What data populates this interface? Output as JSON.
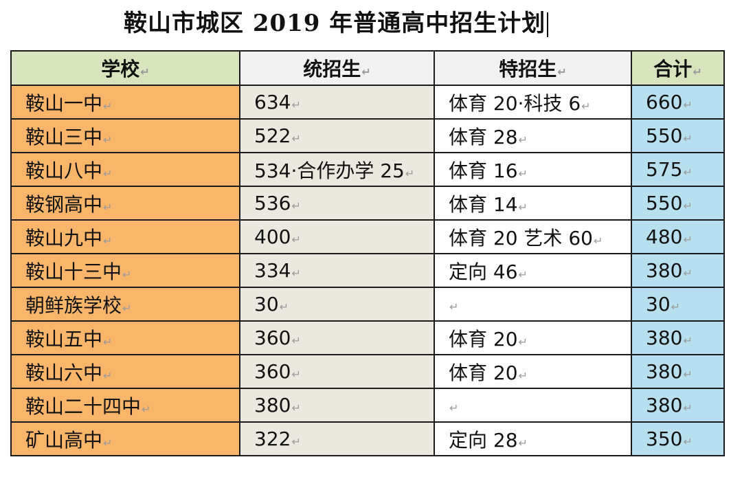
{
  "title": "鞍山市城区 2019 年普通高中招生计划",
  "return_mark": "↵",
  "table": {
    "headers": {
      "school": "学校",
      "general": "统招生",
      "special": "特招生",
      "total": "合计"
    },
    "rows": [
      {
        "school": "鞍山一中",
        "general": "634",
        "special": "体育 20·科技 6",
        "total": "660"
      },
      {
        "school": "鞍山三中",
        "general": "522",
        "special": "体育 28",
        "total": "550"
      },
      {
        "school": "鞍山八中",
        "general": "534·合作办学 25",
        "special": "体育 16",
        "total": "575"
      },
      {
        "school": "鞍钢高中",
        "general": "536",
        "special": "体育 14",
        "total": "550"
      },
      {
        "school": "鞍山九中",
        "general": "400",
        "special": "体育 20 艺术 60",
        "total": "480"
      },
      {
        "school": "鞍山十三中",
        "general": "334",
        "special": "定向 46",
        "total": "380"
      },
      {
        "school": "朝鲜族学校",
        "general": "30",
        "special": "",
        "total": "30"
      },
      {
        "school": "鞍山五中",
        "general": "360",
        "special": "体育 20",
        "total": "380"
      },
      {
        "school": "鞍山六中",
        "general": "360",
        "special": "体育 20",
        "total": "380"
      },
      {
        "school": "鞍山二十四中",
        "general": "380",
        "special": "",
        "total": "380"
      },
      {
        "school": "矿山高中",
        "general": "322",
        "special": "定向 28",
        "total": "350"
      }
    ]
  }
}
